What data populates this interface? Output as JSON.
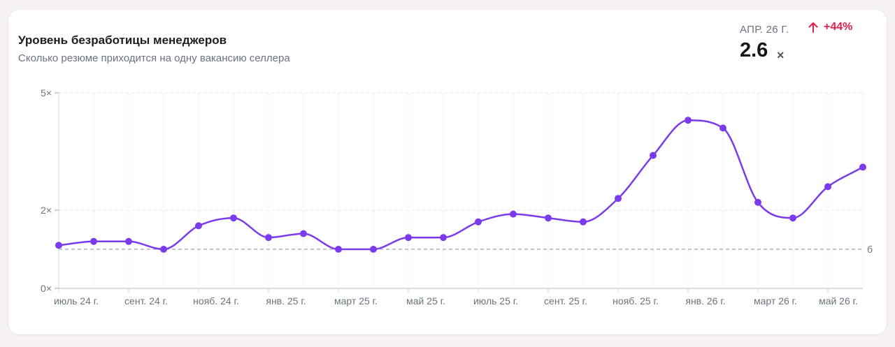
{
  "header": {
    "title": "Уровень безработицы менеджеров",
    "subtitle": "Сколько резюме приходится на одну вакансию селлера"
  },
  "kpi": {
    "period": "АПР. 26 Г.",
    "change": "+44%",
    "value": "2.6",
    "unit": "×"
  },
  "colors": {
    "line": "#7c3aed",
    "change": "#e11d48",
    "grid": "#e5e7eb",
    "reference": "#9ca3af"
  },
  "chart_data": {
    "type": "line",
    "title": "Уровень безработицы менеджеров",
    "subtitle": "Сколько резюме приходится на одну вакансию селлера",
    "y_ticks": [
      {
        "value": 0,
        "label": "0×"
      },
      {
        "value": 2,
        "label": "2×"
      },
      {
        "value": 5,
        "label": "5×"
      }
    ],
    "ylim": [
      0,
      5
    ],
    "x_ticks": [
      {
        "index": 0.5,
        "label": "июль 24 г."
      },
      {
        "index": 2.5,
        "label": "сент. 24 г."
      },
      {
        "index": 4.5,
        "label": "нояб. 24 г."
      },
      {
        "index": 6.5,
        "label": "янв. 25 г."
      },
      {
        "index": 8.5,
        "label": "март 25 г."
      },
      {
        "index": 10.5,
        "label": "май 25 г."
      },
      {
        "index": 12.5,
        "label": "июль 25 г."
      },
      {
        "index": 14.5,
        "label": "сент. 25 г."
      },
      {
        "index": 16.5,
        "label": "нояб. 25 г."
      },
      {
        "index": 18.5,
        "label": "янв. 26 г."
      },
      {
        "index": 20.5,
        "label": "март 26 г."
      },
      {
        "index": 22.3,
        "label": "май 26 г."
      }
    ],
    "series": [
      {
        "values": [
          1.1,
          1.2,
          1.2,
          1.0,
          1.6,
          1.8,
          1.3,
          1.4,
          1.0,
          1.0,
          1.3,
          1.3,
          1.7,
          1.9,
          1.8,
          1.7,
          2.3,
          3.4,
          4.3,
          4.1,
          2.2,
          1.8,
          2.6,
          3.1
        ]
      }
    ],
    "reference_line": {
      "value": 1.0,
      "label": "б"
    },
    "grid": true,
    "legend": "none"
  }
}
